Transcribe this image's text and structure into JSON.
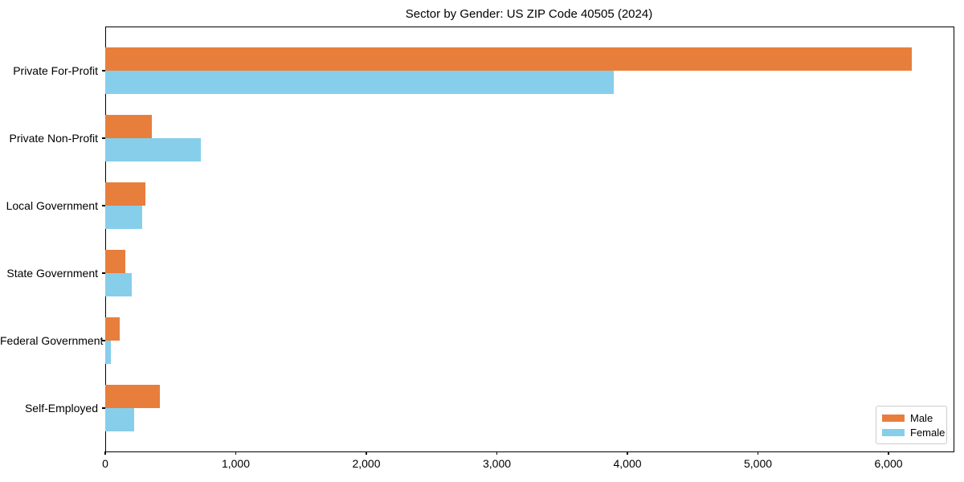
{
  "chart_data": {
    "type": "bar",
    "orientation": "horizontal",
    "title": "Sector by Gender: US ZIP Code 40505 (2024)",
    "categories": [
      "Private For-Profit",
      "Private Non-Profit",
      "Local Government",
      "State Government",
      "Federal Government",
      "Self-Employed"
    ],
    "series": [
      {
        "name": "Male",
        "color": "#E87E3C",
        "values": [
          6180,
          357,
          306,
          152,
          113,
          418
        ]
      },
      {
        "name": "Female",
        "color": "#87CEEB",
        "values": [
          3895,
          732,
          281,
          205,
          45,
          222
        ]
      }
    ],
    "xlabel": "",
    "ylabel": "",
    "xlim": [
      0,
      6492
    ],
    "xticks": [
      0,
      1000,
      2000,
      3000,
      4000,
      5000,
      6000
    ],
    "xtick_labels": [
      "0",
      "1,000",
      "2,000",
      "3,000",
      "4,000",
      "5,000",
      "6,000"
    ],
    "grid": false,
    "background_color": "#ffffff",
    "axis_color": "#000000",
    "legend": {
      "position": "lower-right",
      "entries": [
        "Male",
        "Female"
      ]
    }
  }
}
